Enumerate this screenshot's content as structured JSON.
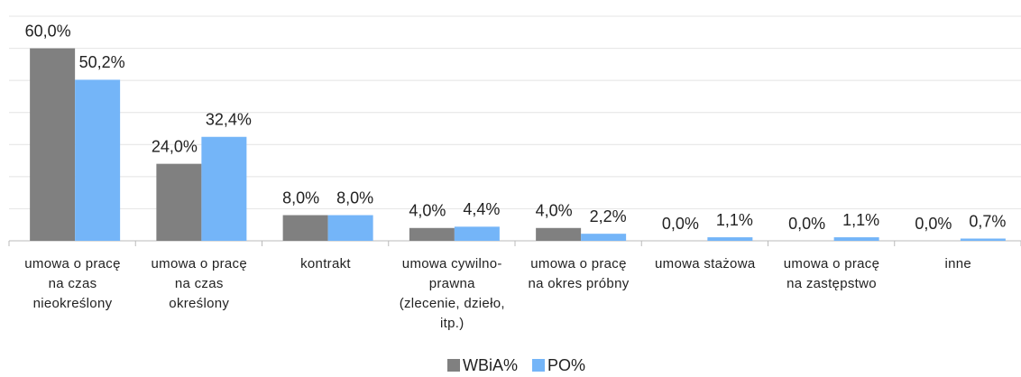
{
  "chart_data": {
    "type": "bar",
    "categories": [
      "umowa o pracę\nna czas\nnieokreślony",
      "umowa o pracę\nna czas\nokreślony",
      "kontrakt",
      "umowa cywilno-\nprawna\n(zlecenie, dzieło,\nitp.)",
      "umowa o pracę\nna okres próbny",
      "umowa stażowa",
      "umowa o pracę\nna zastępstwo",
      "inne"
    ],
    "series": [
      {
        "name": "WBiA%",
        "color": "#808080",
        "values": [
          60,
          24,
          8,
          4,
          4,
          0,
          0,
          0
        ],
        "value_labels": [
          "60,0%",
          "24,0%",
          "8,0%",
          "4,0%",
          "4,0%",
          "0,0%",
          "0,0%",
          "0,0%"
        ]
      },
      {
        "name": "PO%",
        "color": "#74b5f8",
        "values": [
          50.2,
          32.4,
          8.0,
          4.4,
          2.2,
          1.1,
          1.1,
          0.7
        ],
        "value_labels": [
          "50,2%",
          "32,4%",
          "8,0%",
          "4,4%",
          "2,2%",
          "1,1%",
          "1,1%",
          "0,7%"
        ]
      }
    ],
    "ylim": [
      0,
      70
    ],
    "yticks": [
      0,
      10,
      20,
      30,
      40,
      50,
      60,
      70
    ],
    "grid": true,
    "ytick_labels": false,
    "legend": "bottom"
  }
}
